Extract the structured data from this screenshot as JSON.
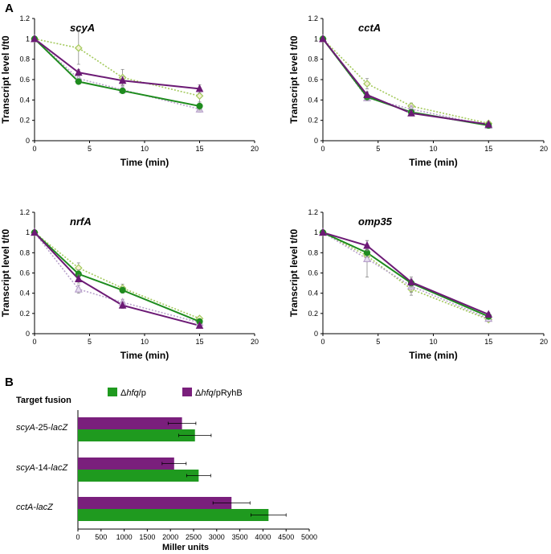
{
  "panel_labels": {
    "a": "A",
    "b": "B"
  },
  "chart_data": [
    {
      "type": "line",
      "title": "scyA",
      "xlabel": "Time (min)",
      "ylabel": "Transcript level t/t0",
      "xlim": [
        0,
        20
      ],
      "ylim": [
        0,
        1.2
      ],
      "xticks": [
        0,
        5,
        10,
        15,
        20
      ],
      "yticks": [
        0,
        0.2,
        0.4,
        0.6,
        0.8,
        1,
        1.2
      ],
      "x": [
        0,
        4,
        8,
        15
      ],
      "series": [
        {
          "name": "green-solid-circle",
          "color": "#1e8c1e",
          "dash": false,
          "marker": "circle",
          "values": [
            1,
            0.58,
            0.49,
            0.34
          ],
          "err": [
            0,
            0.02,
            0.02,
            0.04
          ]
        },
        {
          "name": "purple-solid-triangle",
          "color": "#6c1a75",
          "dash": false,
          "marker": "triangle",
          "values": [
            1,
            0.67,
            0.59,
            0.51
          ],
          "err": [
            0,
            0.03,
            0.04,
            0.04
          ]
        },
        {
          "name": "green-dotted-diamond",
          "color": "#a3c95c",
          "dash": true,
          "marker": "diamond",
          "values": [
            1,
            0.91,
            0.62,
            0.44
          ],
          "err": [
            0,
            0.16,
            0.08,
            0.06
          ]
        },
        {
          "name": "purple-dotted-triangle",
          "color": "#b9a2cc",
          "dash": true,
          "marker": "triangle-open",
          "values": [
            1,
            0.61,
            0.5,
            0.31
          ],
          "err": [
            0,
            0.03,
            0.03,
            0.03
          ]
        }
      ]
    },
    {
      "type": "line",
      "title": "cctA",
      "xlabel": "Time (min)",
      "ylabel": "Transcript level t/t0",
      "xlim": [
        0,
        20
      ],
      "ylim": [
        0,
        1.2
      ],
      "xticks": [
        0,
        5,
        10,
        15,
        20
      ],
      "yticks": [
        0,
        0.2,
        0.4,
        0.6,
        0.8,
        1,
        1.2
      ],
      "x": [
        0,
        4,
        8,
        15
      ],
      "series": [
        {
          "name": "green-solid-circle",
          "color": "#1e8c1e",
          "dash": false,
          "marker": "circle",
          "values": [
            1,
            0.43,
            0.28,
            0.15
          ],
          "err": [
            0,
            0.03,
            0.02,
            0.02
          ]
        },
        {
          "name": "purple-solid-triangle",
          "color": "#6c1a75",
          "dash": false,
          "marker": "triangle",
          "values": [
            1,
            0.45,
            0.27,
            0.16
          ],
          "err": [
            0,
            0.03,
            0.02,
            0.02
          ]
        },
        {
          "name": "green-dotted-diamond",
          "color": "#a3c95c",
          "dash": true,
          "marker": "diamond",
          "values": [
            1,
            0.56,
            0.34,
            0.17
          ],
          "err": [
            0,
            0.05,
            0.03,
            0.02
          ]
        },
        {
          "name": "purple-dotted-triangle",
          "color": "#b9a2cc",
          "dash": true,
          "marker": "triangle-open",
          "values": [
            1,
            0.42,
            0.31,
            0.15
          ],
          "err": [
            0,
            0.03,
            0.03,
            0.02
          ]
        }
      ]
    },
    {
      "type": "line",
      "title": "nrfA",
      "xlabel": "Time (min)",
      "ylabel": "Transcript level t/t0",
      "xlim": [
        0,
        20
      ],
      "ylim": [
        0,
        1.2
      ],
      "xticks": [
        0,
        5,
        10,
        15,
        20
      ],
      "yticks": [
        0,
        0.2,
        0.4,
        0.6,
        0.8,
        1,
        1.2
      ],
      "x": [
        0,
        4,
        8,
        15
      ],
      "series": [
        {
          "name": "green-solid-circle",
          "color": "#1e8c1e",
          "dash": false,
          "marker": "circle",
          "values": [
            1,
            0.59,
            0.43,
            0.12
          ],
          "err": [
            0,
            0.04,
            0.03,
            0.02
          ]
        },
        {
          "name": "purple-solid-triangle",
          "color": "#6c1a75",
          "dash": false,
          "marker": "triangle",
          "values": [
            1,
            0.54,
            0.28,
            0.08
          ],
          "err": [
            0,
            0.04,
            0.03,
            0.02
          ]
        },
        {
          "name": "green-dotted-diamond",
          "color": "#a3c95c",
          "dash": true,
          "marker": "diamond",
          "values": [
            1,
            0.65,
            0.45,
            0.15
          ],
          "err": [
            0,
            0.05,
            0.04,
            0.02
          ]
        },
        {
          "name": "purple-dotted-triangle",
          "color": "#b9a2cc",
          "dash": true,
          "marker": "triangle-open",
          "values": [
            1,
            0.44,
            0.31,
            0.11
          ],
          "err": [
            0,
            0.04,
            0.03,
            0.02
          ]
        }
      ]
    },
    {
      "type": "line",
      "title": "omp35",
      "xlabel": "Time (min)",
      "ylabel": "Transcript level t/t0",
      "xlim": [
        0,
        20
      ],
      "ylim": [
        0,
        1.2
      ],
      "xticks": [
        0,
        5,
        10,
        15,
        20
      ],
      "yticks": [
        0,
        0.2,
        0.4,
        0.6,
        0.8,
        1,
        1.2
      ],
      "x": [
        0,
        4,
        8,
        15
      ],
      "series": [
        {
          "name": "green-solid-circle",
          "color": "#1e8c1e",
          "dash": false,
          "marker": "circle",
          "values": [
            1,
            0.8,
            0.5,
            0.17
          ],
          "err": [
            0,
            0.04,
            0.04,
            0.02
          ]
        },
        {
          "name": "purple-solid-triangle",
          "color": "#6c1a75",
          "dash": false,
          "marker": "triangle",
          "values": [
            1,
            0.87,
            0.51,
            0.19
          ],
          "err": [
            0,
            0.05,
            0.05,
            0.02
          ]
        },
        {
          "name": "green-dotted-diamond",
          "color": "#a3c95c",
          "dash": true,
          "marker": "diamond",
          "values": [
            1,
            0.77,
            0.44,
            0.14
          ],
          "err": [
            0,
            0.06,
            0.06,
            0.02
          ]
        },
        {
          "name": "purple-dotted-triangle",
          "color": "#b9a2cc",
          "dash": true,
          "marker": "triangle-open",
          "values": [
            1,
            0.74,
            0.47,
            0.15
          ],
          "err": [
            0,
            0.18,
            0.06,
            0.02
          ]
        }
      ]
    },
    {
      "type": "bar",
      "orientation": "horizontal",
      "header": "Target fusion",
      "xlabel": "Miller units",
      "xlim": [
        0,
        5000
      ],
      "xticks": [
        0,
        500,
        1000,
        1500,
        2000,
        2500,
        3000,
        3500,
        4000,
        4500,
        5000
      ],
      "categories": [
        {
          "gene": "scyA",
          "suffix": "-25-",
          "fusion": "lacZ"
        },
        {
          "gene": "scyA",
          "suffix": "-14-",
          "fusion": "lacZ"
        },
        {
          "gene": "cctA",
          "suffix": "-",
          "fusion": "lacZ"
        }
      ],
      "series": [
        {
          "legend_prefix": "Δ",
          "legend_italic": "hfq",
          "legend_suffix": "/pRyhB",
          "color": "#7a1f7c",
          "values": [
            2250,
            2080,
            3320
          ],
          "err": [
            300,
            260,
            400
          ]
        },
        {
          "legend_prefix": "Δ",
          "legend_italic": "hfq",
          "legend_suffix": "/p",
          "color": "#1f9a1f",
          "values": [
            2530,
            2610,
            4120
          ],
          "err": [
            350,
            260,
            380
          ]
        }
      ]
    }
  ]
}
